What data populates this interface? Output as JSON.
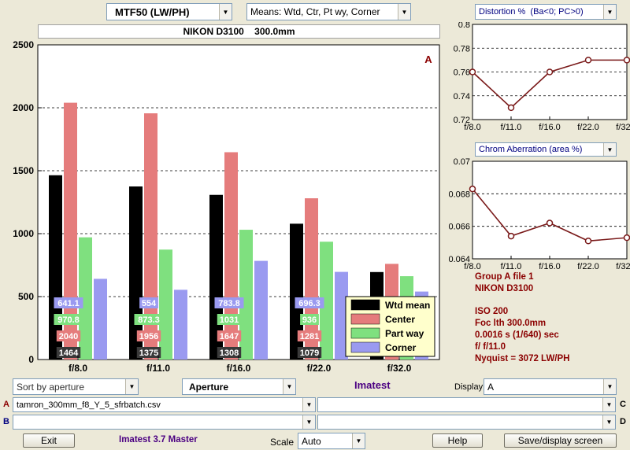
{
  "toolbar": {
    "plot_select": "MTF50 (LW/PH)",
    "means_select": "Means: Wtd, Ctr, Pt wy, Corner",
    "subtitle": "NIKON D3100    300.0mm"
  },
  "main_chart": {
    "corner_label": "A",
    "y_ticks": [
      "2500",
      "2000",
      "1500",
      "1000",
      "500",
      "0"
    ],
    "legend": [
      {
        "name": "Wtd mean",
        "color": "#000000"
      },
      {
        "name": "Center",
        "color": "#e57c7c"
      },
      {
        "name": "Part way",
        "color": "#7fe07f"
      },
      {
        "name": "Corner",
        "color": "#9a9af0"
      }
    ],
    "label_colors": {
      "wtd": "#3a3a3a",
      "center": "#e57c7c",
      "partway": "#7fe07f",
      "corner": "#9a9af0"
    }
  },
  "chart_data": [
    {
      "type": "bar",
      "title": "MTF50 (LW/PH)",
      "categories": [
        "f/8.0",
        "f/11.0",
        "f/16.0",
        "f/22.0",
        "f/32.0"
      ],
      "ylim": [
        0,
        2500
      ],
      "grid": true,
      "legend_position": "bottom-right",
      "series": [
        {
          "name": "Wtd mean",
          "values": [
            1464,
            1375,
            1308,
            1079,
            695
          ]
        },
        {
          "name": "Center",
          "values": [
            2040,
            1956,
            1647,
            1281,
            760
          ]
        },
        {
          "name": "Part way",
          "values": [
            970.8,
            873.3,
            1031,
            936,
            662
          ]
        },
        {
          "name": "Corner",
          "values": [
            641.1,
            554,
            783.8,
            696.3,
            540
          ]
        }
      ],
      "data_labels": [
        [
          "1464",
          "2040",
          "970.8",
          "641.1"
        ],
        [
          "1375",
          "1956",
          "873.3",
          "554"
        ],
        [
          "1308",
          "1647",
          "1031",
          "783.8"
        ],
        [
          "1079",
          "1281",
          "936",
          "696.3"
        ]
      ]
    },
    {
      "type": "line",
      "title": "Distortion %  (Ba<0; PC>0)",
      "x": [
        "f/8.0",
        "f/11.0",
        "f/16.0",
        "f/22.0",
        "f/32.0"
      ],
      "y": [
        0.76,
        0.73,
        0.76,
        0.77,
        0.77
      ],
      "ylim": [
        0.72,
        0.8
      ],
      "y_ticks": [
        "0.8",
        "0.78",
        "0.76",
        "0.74",
        "0.72"
      ],
      "grid": true
    },
    {
      "type": "line",
      "title": "Chrom Aberration (area %)",
      "x": [
        "f/8.0",
        "f/11.0",
        "f/16.0",
        "f/22.0",
        "f/32.0"
      ],
      "y": [
        0.0683,
        0.0654,
        0.0662,
        0.0651,
        0.0653
      ],
      "ylim": [
        0.064,
        0.07
      ],
      "y_ticks": [
        "0.07",
        "0.068",
        "0.066",
        "0.064"
      ],
      "grid": true
    }
  ],
  "info_panel": [
    "Group A file 1",
    "NIKON D3100",
    "",
    "ISO  200",
    "Foc lth  300.0mm",
    "0.0016 s  (1/640)  sec",
    "f/  f/11.0",
    "Nyquist = 3072 LW/PH"
  ],
  "controls": {
    "sort_select": "Sort by aperture",
    "aperture_select": "Aperture",
    "app_name": "Imatest",
    "display_label": "Display",
    "display_select": "A",
    "row_a_label": "A",
    "file_a": "tamron_300mm_f8_Y_5_sfrbatch.csv",
    "row_b_label": "B",
    "file_b": "",
    "row_c_label": "C",
    "file_c": "",
    "row_d_label": "D",
    "file_d": ""
  },
  "footer": {
    "exit_label": "Exit",
    "version": "Imatest 3.7 Master",
    "scale_label": "Scale",
    "scale_select": "Auto",
    "help_label": "Help",
    "save_label": "Save/display screen"
  },
  "colors": {
    "dark_red": "#8b0000",
    "purple": "#4b0082",
    "line_red": "#7a1a1a"
  }
}
